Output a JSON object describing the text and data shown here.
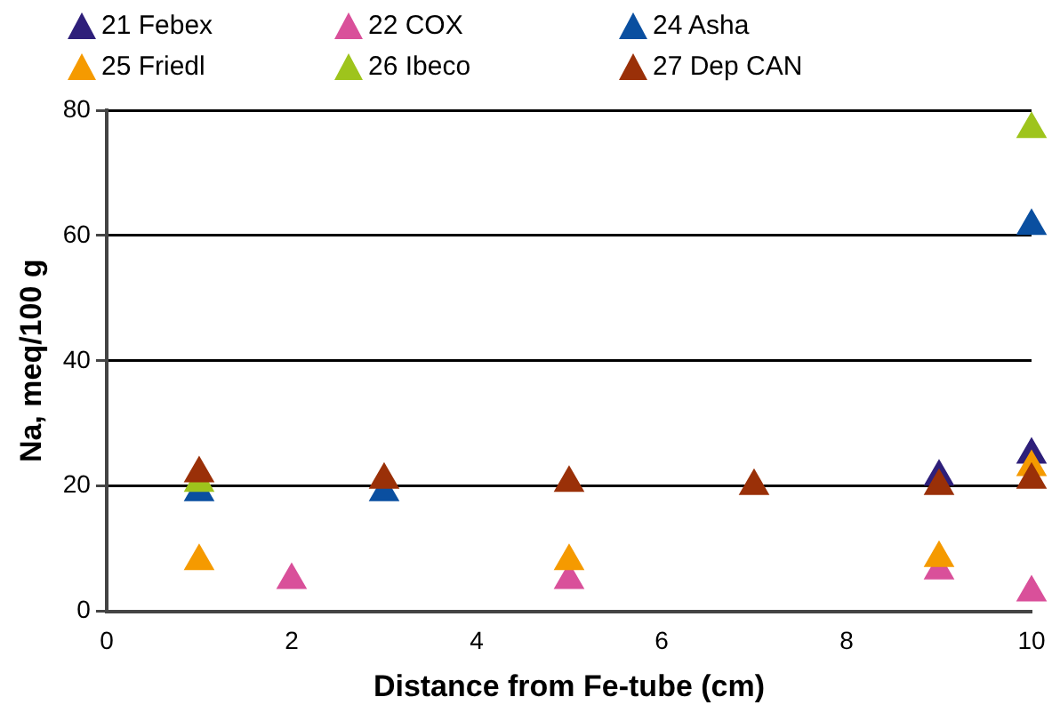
{
  "chart_data": {
    "type": "scatter",
    "xlabel": "Distance from Fe-tube (cm)",
    "ylabel": "Na, meq/100 g",
    "xlim": [
      0,
      10
    ],
    "xticks": [
      0,
      2,
      4,
      6,
      8,
      10
    ],
    "ylim": [
      0,
      80
    ],
    "yticks": [
      0,
      20,
      40,
      60,
      80
    ],
    "grid": "y",
    "legend": "top",
    "marker": "triangle",
    "series": [
      {
        "name": "21 Febex",
        "color": "#2e1f7a",
        "x": [
          9,
          10
        ],
        "values": [
          21.5,
          25
        ]
      },
      {
        "name": "22 COX",
        "color": "#d9509a",
        "x": [
          2,
          5,
          9,
          10
        ],
        "values": [
          5,
          5,
          6.5,
          3
        ]
      },
      {
        "name": "24 Asha",
        "color": "#0a4fa0",
        "x": [
          1,
          3,
          10
        ],
        "values": [
          19,
          19,
          61.5
        ]
      },
      {
        "name": "25 Friedl",
        "color": "#f59a00",
        "x": [
          1,
          5,
          9,
          10
        ],
        "values": [
          8,
          8,
          8.5,
          23
        ]
      },
      {
        "name": "26 Ibeco",
        "color": "#9ec41c",
        "x": [
          1,
          10
        ],
        "values": [
          20.5,
          77
        ]
      },
      {
        "name": "27 Dep CAN",
        "color": "#9a3008",
        "x": [
          1,
          3,
          5,
          7,
          9,
          10
        ],
        "values": [
          22,
          21,
          20.5,
          20,
          20,
          21
        ]
      }
    ]
  }
}
